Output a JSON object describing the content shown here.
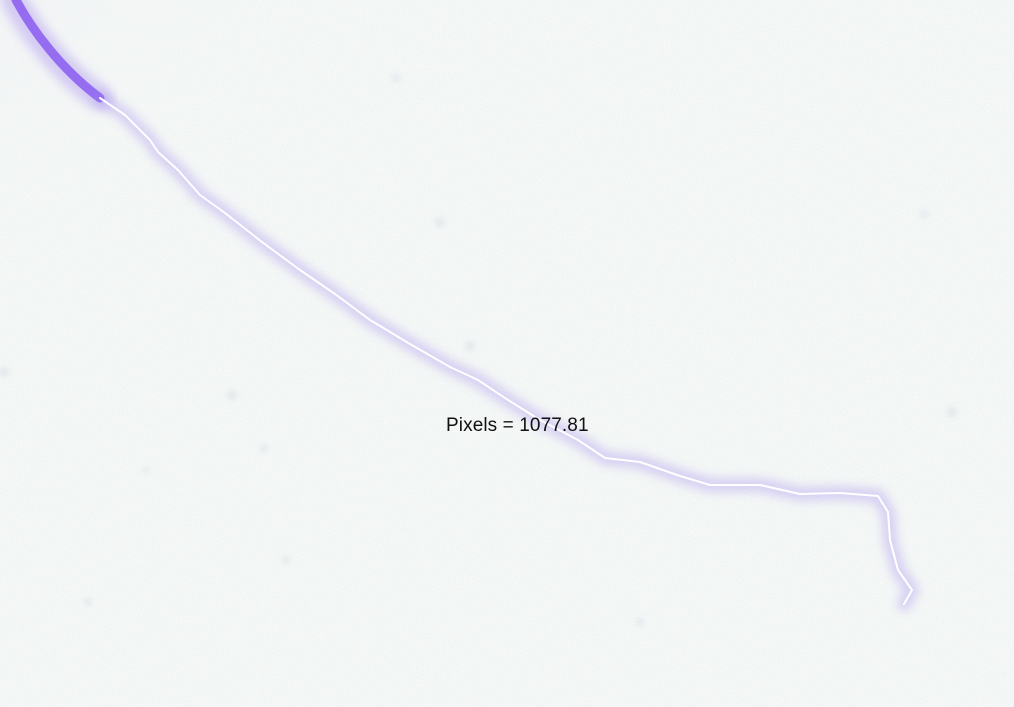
{
  "measurement": {
    "label": "Pixels = 1077.81",
    "value": 1077.81,
    "unit": "Pixels"
  },
  "colors": {
    "background": "#f3f6f5",
    "trace_glow": "#8a5cf0",
    "trace_core": "#ffffff",
    "label_text": "#111111"
  }
}
